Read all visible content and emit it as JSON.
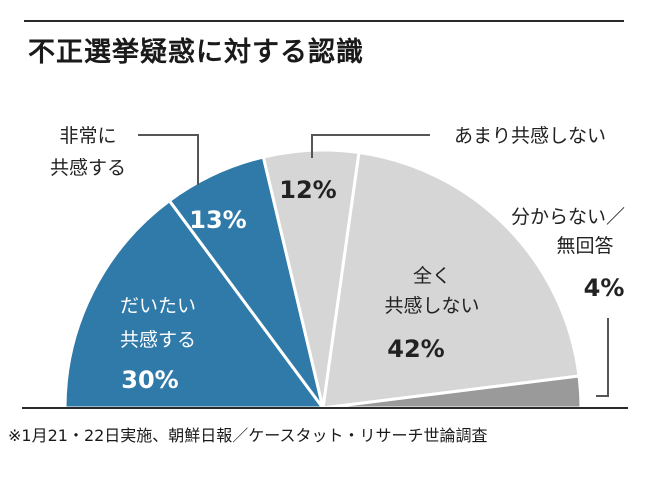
{
  "title": "不正選挙疑惑に対する認識",
  "footnote": "※1月21・22日実施、朝鮮日報／ケースタット・リサーチ世論調査",
  "chart_data": {
    "type": "pie",
    "subtype": "half-pie",
    "title": "不正選挙疑惑に対する認識",
    "categories": [
      "だいたい共感する",
      "非常に共感する",
      "あまり共感しない",
      "全く共感しない",
      "分からない／無回答"
    ],
    "values": [
      30,
      13,
      12,
      42,
      4
    ],
    "unit": "%",
    "slice_labels": [
      {
        "lines": [
          "だいたい",
          "共感する"
        ],
        "value": "30%"
      },
      {
        "lines": [
          "非常に",
          "共感する"
        ],
        "value": "13%"
      },
      {
        "lines": [
          "あまり共感しない"
        ],
        "value": "12%"
      },
      {
        "lines": [
          "全く",
          "共感しない"
        ],
        "value": "42%"
      },
      {
        "lines": [
          "分からない／",
          "無回答"
        ],
        "value": "4%"
      }
    ],
    "colors": [
      "#2f7aa9",
      "#2f7aa9",
      "#d6d6d6",
      "#d6d6d6",
      "#9a9a9a"
    ]
  }
}
